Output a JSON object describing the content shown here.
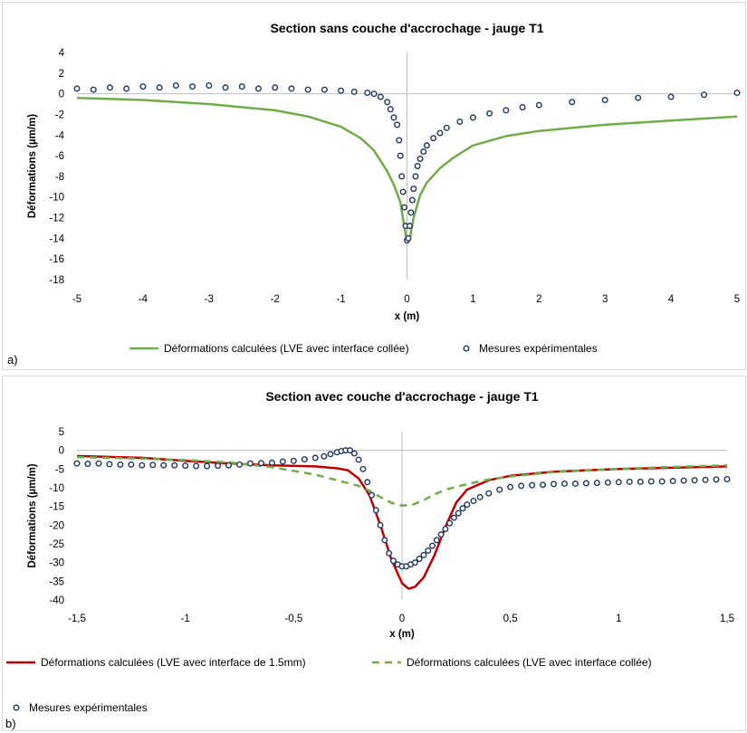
{
  "chart_data": [
    {
      "type": "scatter",
      "panel_label": "a)",
      "title": "Section sans couche d'accrochage - jauge T1",
      "xlabel": "x (m)",
      "ylabel": "Déformations (µm/m)",
      "xlim": [
        -5,
        5
      ],
      "ylim": [
        -18,
        4
      ],
      "xticks": [
        -5,
        -4,
        -3,
        -2,
        -1,
        0,
        1,
        2,
        3,
        4,
        5
      ],
      "xtick_labels": [
        "-5",
        "-4",
        "-3",
        "-2",
        "-1",
        "0",
        "1",
        "2",
        "3",
        "4",
        "5"
      ],
      "yticks": [
        4,
        2,
        0,
        -2,
        -4,
        -6,
        -8,
        -10,
        -12,
        -14,
        -16,
        -18
      ],
      "ytick_labels": [
        "4",
        "2",
        "0",
        "-2",
        "-4",
        "-6",
        "-8",
        "-10",
        "-12",
        "-14",
        "-16",
        "-18"
      ],
      "grid": false,
      "legend_position": "bottom",
      "colors": {
        "calc": "#70ad47",
        "meas": "#1f3864"
      },
      "series": [
        {
          "name": "Déformations calculées (LVE avec interface collée)",
          "kind": "line",
          "style": "solid",
          "x": [
            -5,
            -4,
            -3,
            -2,
            -1.5,
            -1,
            -0.7,
            -0.5,
            -0.3,
            -0.2,
            -0.1,
            -0.05,
            0,
            0.05,
            0.1,
            0.2,
            0.3,
            0.5,
            0.7,
            1,
            1.5,
            2,
            3,
            4,
            5
          ],
          "y": [
            -0.4,
            -0.6,
            -1.0,
            -1.6,
            -2.2,
            -3.2,
            -4.3,
            -5.5,
            -7.5,
            -8.8,
            -10.5,
            -12.5,
            -14.4,
            -13.8,
            -12.0,
            -9.8,
            -8.6,
            -7.2,
            -6.2,
            -5.0,
            -4.1,
            -3.6,
            -3.0,
            -2.6,
            -2.2
          ]
        },
        {
          "name": "Mesures expérimentales",
          "kind": "scatter",
          "x": [
            -5,
            -4.75,
            -4.5,
            -4.25,
            -4,
            -3.75,
            -3.5,
            -3.25,
            -3,
            -2.75,
            -2.5,
            -2.25,
            -2,
            -1.75,
            -1.5,
            -1.25,
            -1,
            -0.8,
            -0.6,
            -0.5,
            -0.4,
            -0.3,
            -0.25,
            -0.2,
            -0.15,
            -0.12,
            -0.1,
            -0.08,
            -0.06,
            -0.04,
            -0.02,
            0,
            0.02,
            0.04,
            0.06,
            0.08,
            0.1,
            0.13,
            0.16,
            0.2,
            0.25,
            0.3,
            0.4,
            0.5,
            0.6,
            0.8,
            1,
            1.25,
            1.5,
            1.75,
            2,
            2.5,
            3,
            3.5,
            4,
            4.5,
            5
          ],
          "y": [
            0.5,
            0.4,
            0.6,
            0.5,
            0.7,
            0.6,
            0.8,
            0.7,
            0.8,
            0.6,
            0.7,
            0.5,
            0.6,
            0.5,
            0.4,
            0.4,
            0.3,
            0.2,
            0.1,
            0.0,
            -0.3,
            -0.8,
            -1.5,
            -2.3,
            -3.0,
            -4.5,
            -6.0,
            -8.0,
            -9.5,
            -11.0,
            -12.8,
            -14.2,
            -14.0,
            -12.8,
            -11.5,
            -10.3,
            -9.2,
            -8.0,
            -7.0,
            -6.3,
            -5.6,
            -5.0,
            -4.3,
            -3.8,
            -3.3,
            -2.7,
            -2.3,
            -1.9,
            -1.6,
            -1.3,
            -1.1,
            -0.8,
            -0.6,
            -0.4,
            -0.3,
            -0.1,
            0.1
          ]
        }
      ]
    },
    {
      "type": "scatter",
      "panel_label": "b)",
      "title": "Section avec couche d'accrochage - jauge T1",
      "xlabel": "x (m)",
      "ylabel": "Déformations (µm/m)",
      "xlim": [
        -1.5,
        1.5
      ],
      "ylim": [
        -40,
        5
      ],
      "xticks": [
        -1.5,
        -1,
        -0.5,
        0,
        0.5,
        1,
        1.5
      ],
      "xtick_labels": [
        "-1,5",
        "-1",
        "-0,5",
        "0",
        "0,5",
        "1",
        "1,5"
      ],
      "yticks": [
        5,
        0,
        -5,
        -10,
        -15,
        -20,
        -25,
        -30,
        -35,
        -40
      ],
      "ytick_labels": [
        "5",
        "0",
        "-5",
        "-10",
        "-15",
        "-20",
        "-25",
        "-30",
        "-35",
        "-40"
      ],
      "grid": false,
      "legend_position": "bottom",
      "colors": {
        "calc15": "#c00000",
        "calc": "#70ad47",
        "meas": "#1f3864"
      },
      "series": [
        {
          "name": "Déformations calculées (LVE avec interface de 1.5mm)",
          "kind": "line",
          "style": "solid",
          "x": [
            -1.5,
            -1.2,
            -1.0,
            -0.8,
            -0.6,
            -0.4,
            -0.3,
            -0.25,
            -0.2,
            -0.15,
            -0.1,
            -0.05,
            0,
            0.03,
            0.06,
            0.1,
            0.15,
            0.2,
            0.25,
            0.3,
            0.4,
            0.5,
            0.7,
            1.0,
            1.2,
            1.5
          ],
          "y": [
            -1.5,
            -2.0,
            -2.8,
            -3.5,
            -4.0,
            -4.3,
            -4.8,
            -5.3,
            -7.5,
            -12.0,
            -20.0,
            -29.0,
            -35.5,
            -37.0,
            -36.5,
            -34.0,
            -28.0,
            -20.5,
            -14.0,
            -10.5,
            -8.0,
            -6.8,
            -5.7,
            -5.0,
            -4.7,
            -4.3
          ]
        },
        {
          "name": "Déformations calculées (LVE avec interface collée)",
          "kind": "line",
          "style": "dashed",
          "x": [
            -1.5,
            -1.2,
            -1.0,
            -0.8,
            -0.6,
            -0.4,
            -0.3,
            -0.2,
            -0.15,
            -0.1,
            -0.05,
            0,
            0.05,
            0.1,
            0.15,
            0.2,
            0.3,
            0.4,
            0.5,
            0.7,
            1.0,
            1.2,
            1.5
          ],
          "y": [
            -1.8,
            -2.2,
            -2.6,
            -3.2,
            -4.5,
            -6.5,
            -8.0,
            -9.5,
            -10.8,
            -12.5,
            -14.0,
            -14.8,
            -14.5,
            -13.3,
            -11.8,
            -10.5,
            -9.0,
            -7.8,
            -7.0,
            -5.8,
            -5.0,
            -4.5,
            -4.0
          ]
        },
        {
          "name": "Mesures expérimentales",
          "kind": "scatter",
          "x": [
            -1.5,
            -1.45,
            -1.4,
            -1.35,
            -1.3,
            -1.25,
            -1.2,
            -1.15,
            -1.1,
            -1.05,
            -1.0,
            -0.95,
            -0.9,
            -0.85,
            -0.8,
            -0.75,
            -0.7,
            -0.65,
            -0.6,
            -0.55,
            -0.5,
            -0.45,
            -0.4,
            -0.36,
            -0.33,
            -0.3,
            -0.28,
            -0.26,
            -0.24,
            -0.22,
            -0.2,
            -0.18,
            -0.16,
            -0.14,
            -0.12,
            -0.1,
            -0.08,
            -0.06,
            -0.04,
            -0.02,
            0,
            0.02,
            0.04,
            0.06,
            0.08,
            0.1,
            0.12,
            0.14,
            0.16,
            0.18,
            0.2,
            0.22,
            0.24,
            0.26,
            0.28,
            0.3,
            0.33,
            0.36,
            0.4,
            0.45,
            0.5,
            0.55,
            0.6,
            0.65,
            0.7,
            0.75,
            0.8,
            0.85,
            0.9,
            0.95,
            1.0,
            1.05,
            1.1,
            1.15,
            1.2,
            1.25,
            1.3,
            1.35,
            1.4,
            1.45,
            1.5
          ],
          "y": [
            -3.5,
            -3.6,
            -3.5,
            -3.7,
            -3.8,
            -3.8,
            -4.0,
            -3.9,
            -4.0,
            -4.0,
            -4.1,
            -4.2,
            -4.2,
            -4.1,
            -4.0,
            -3.8,
            -3.5,
            -3.4,
            -3.3,
            -3.0,
            -2.8,
            -2.4,
            -2.0,
            -1.6,
            -1.0,
            -0.5,
            -0.2,
            0.0,
            0.0,
            -0.8,
            -2.5,
            -5.0,
            -8.5,
            -12.0,
            -16.0,
            -20.0,
            -24.0,
            -27.5,
            -29.5,
            -30.5,
            -31.0,
            -31.0,
            -30.5,
            -30.0,
            -29.0,
            -28.0,
            -26.8,
            -25.5,
            -24.0,
            -22.5,
            -21.0,
            -19.5,
            -18.0,
            -16.8,
            -15.5,
            -14.5,
            -13.5,
            -12.5,
            -11.5,
            -10.5,
            -9.8,
            -9.5,
            -9.3,
            -9.2,
            -9.0,
            -8.9,
            -8.9,
            -8.8,
            -8.7,
            -8.6,
            -8.5,
            -8.4,
            -8.4,
            -8.3,
            -8.3,
            -8.2,
            -8.1,
            -8.0,
            -7.9,
            -7.8,
            -7.7
          ]
        }
      ]
    }
  ]
}
